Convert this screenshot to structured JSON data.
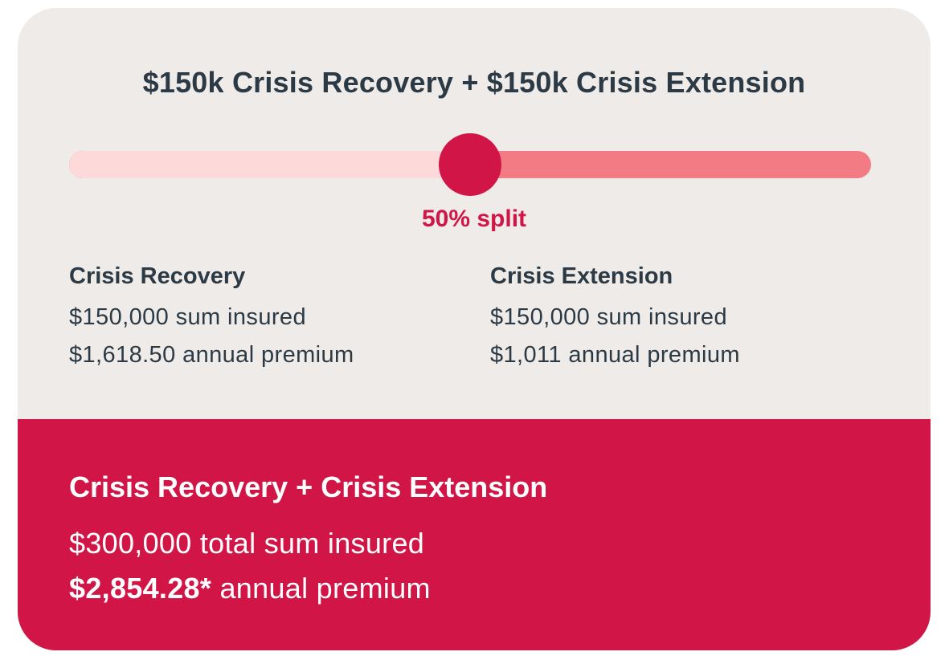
{
  "header": {
    "title": "$150k Crisis Recovery + $150k Crisis Extension"
  },
  "slider": {
    "value_percent": 50,
    "label": "50% split",
    "colors": {
      "thumb": "#d11547",
      "filled": "#fdd9d9",
      "remaining": "#f27b84"
    }
  },
  "covers": [
    {
      "name": "Crisis Recovery",
      "sum_insured": "$150,000 sum insured",
      "premium": "$1,618.50 annual premium"
    },
    {
      "name": "Crisis Extension",
      "sum_insured": "$150,000 sum insured",
      "premium": "$1,011 annual premium"
    }
  ],
  "summary": {
    "title": "Crisis Recovery + Crisis Extension",
    "total_sum": "$300,000 total sum insured",
    "premium_amount": "$2,854.28*",
    "premium_suffix": " annual premium",
    "background": "#d11547"
  }
}
